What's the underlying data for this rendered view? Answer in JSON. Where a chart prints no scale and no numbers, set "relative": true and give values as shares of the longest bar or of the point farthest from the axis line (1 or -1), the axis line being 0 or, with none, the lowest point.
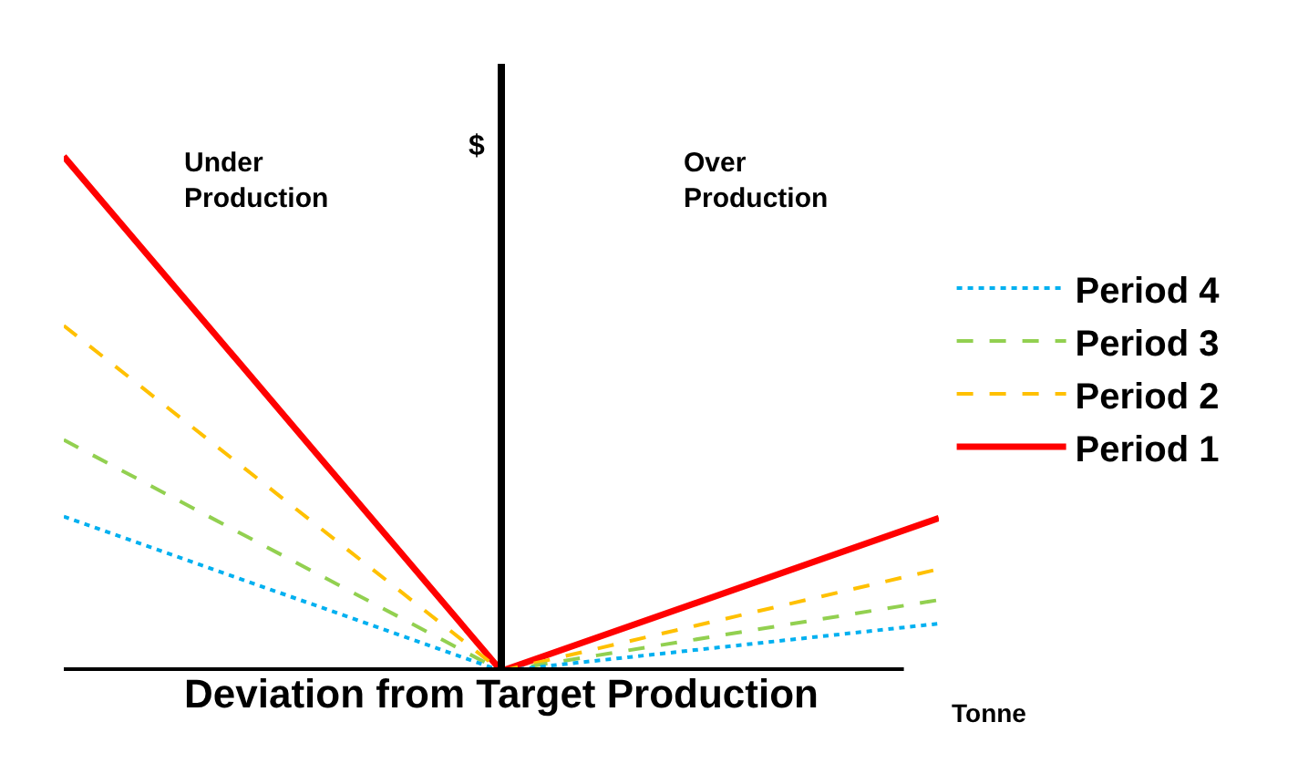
{
  "chart_data": {
    "type": "line",
    "relative": true,
    "xlabel": "Deviation from Target Production",
    "ylabel": "$",
    "categories": [
      null,
      null,
      null
    ],
    "annotations": [
      "Under Production",
      "Over Production",
      "Tonne"
    ],
    "legend": "right",
    "marker": "none",
    "series": [
      {
        "name": "Period 1",
        "color": "#ff0000",
        "line_style": "solid",
        "values": [
          1,
          0,
          0.297
        ]
      },
      {
        "name": "Period 2",
        "color": "#ffc000",
        "line_style": "dashed",
        "values": [
          0.671,
          0,
          0.198
        ]
      },
      {
        "name": "Period 3",
        "color": "#92d050",
        "line_style": "dashed",
        "values": [
          0.449,
          0,
          0.138
        ]
      },
      {
        "name": "Period 4",
        "color": "#00b0f0",
        "line_style": "dotted",
        "values": [
          0.3,
          0,
          0.092
        ]
      }
    ]
  }
}
